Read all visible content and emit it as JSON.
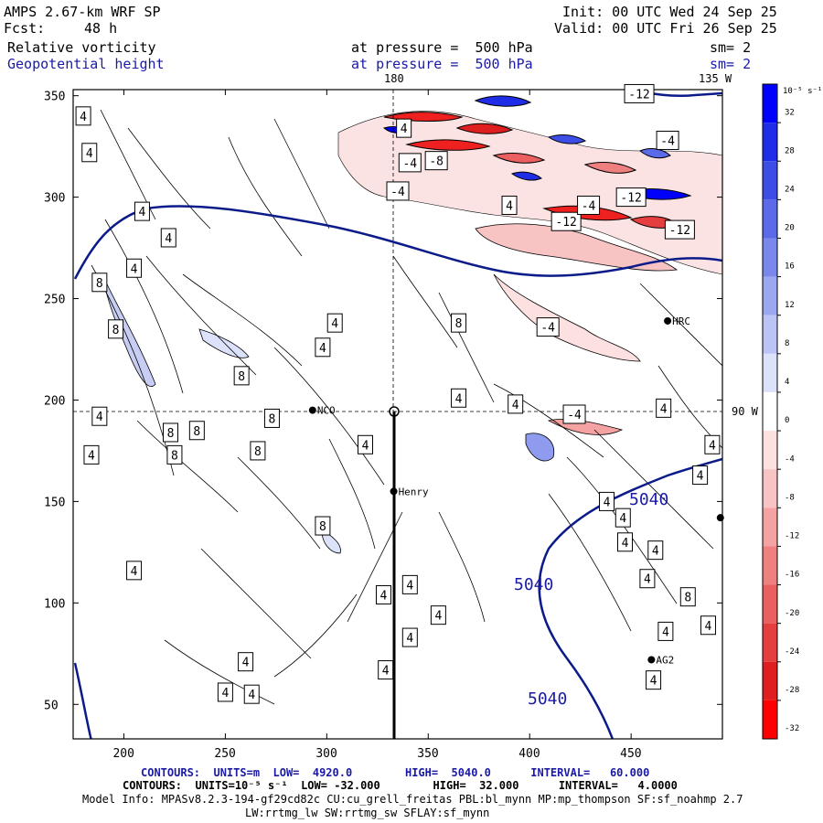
{
  "header": {
    "model": "AMPS 2.67-km WRF SP",
    "init": "Init: 00 UTC Wed 24 Sep 25",
    "fcst_label": "Fcst:",
    "fcst_value": "48 h",
    "valid": "Valid: 00 UTC Fri 26 Sep 25",
    "field1": "Relative vorticity",
    "field1_level": "at pressure =  500 hPa",
    "field1_sm": "sm= 2",
    "field2": "Geopotential height",
    "field2_level": "at pressure =  500 hPa",
    "field2_sm": "sm= 2"
  },
  "map": {
    "x_ticks": [
      "200",
      "250",
      "300",
      "350",
      "400",
      "450"
    ],
    "y_ticks": [
      "350",
      "300",
      "250",
      "200",
      "150",
      "100",
      "50"
    ],
    "lon_label_top_180": "180",
    "lon_label_top_135w": "135 W",
    "lon_label_right_90w": "90 W",
    "stations": [
      {
        "name": "HRC",
        "x": 468,
        "y": 239
      },
      {
        "name": "NCO",
        "x": 293,
        "y": 195
      },
      {
        "name": "Henry",
        "x": 333,
        "y": 155
      },
      {
        "name": "AG2",
        "x": 460,
        "y": 72
      },
      {
        "name": "",
        "x": 494,
        "y": 142
      }
    ],
    "height_labels": [
      "5040",
      "5040",
      "5040"
    ],
    "vort_labels": [
      {
        "t": "4",
        "x": 180,
        "y": 340
      },
      {
        "t": "4",
        "x": 183,
        "y": 322
      },
      {
        "t": "4",
        "x": 209,
        "y": 293
      },
      {
        "t": "4",
        "x": 222,
        "y": 280
      },
      {
        "t": "4",
        "x": 205,
        "y": 265
      },
      {
        "t": "8",
        "x": 188,
        "y": 258
      },
      {
        "t": "8",
        "x": 196,
        "y": 235
      },
      {
        "t": "4",
        "x": 304,
        "y": 238
      },
      {
        "t": "4",
        "x": 298,
        "y": 226
      },
      {
        "t": "8",
        "x": 258,
        "y": 212
      },
      {
        "t": "8",
        "x": 365,
        "y": 238
      },
      {
        "t": "-4",
        "x": 409,
        "y": 236
      },
      {
        "t": "4",
        "x": 188,
        "y": 192
      },
      {
        "t": "4",
        "x": 184,
        "y": 173
      },
      {
        "t": "8",
        "x": 223,
        "y": 184
      },
      {
        "t": "8",
        "x": 225,
        "y": 173
      },
      {
        "t": "8",
        "x": 236,
        "y": 185
      },
      {
        "t": "8",
        "x": 266,
        "y": 175
      },
      {
        "t": "8",
        "x": 273,
        "y": 191
      },
      {
        "t": "4",
        "x": 319,
        "y": 178
      },
      {
        "t": "4",
        "x": 365,
        "y": 201
      },
      {
        "t": "4",
        "x": 393,
        "y": 198
      },
      {
        "t": "-4",
        "x": 422,
        "y": 193
      },
      {
        "t": "4",
        "x": 466,
        "y": 196
      },
      {
        "t": "4",
        "x": 490,
        "y": 178
      },
      {
        "t": "4",
        "x": 484,
        "y": 163
      },
      {
        "t": "8",
        "x": 298,
        "y": 138
      },
      {
        "t": "4",
        "x": 438,
        "y": 150
      },
      {
        "t": "4",
        "x": 446,
        "y": 142
      },
      {
        "t": "4",
        "x": 447,
        "y": 130
      },
      {
        "t": "4",
        "x": 462,
        "y": 126
      },
      {
        "t": "4",
        "x": 458,
        "y": 112
      },
      {
        "t": "8",
        "x": 478,
        "y": 103
      },
      {
        "t": "4",
        "x": 488,
        "y": 89
      },
      {
        "t": "4",
        "x": 467,
        "y": 86
      },
      {
        "t": "4",
        "x": 461,
        "y": 62
      },
      {
        "t": "4",
        "x": 205,
        "y": 116
      },
      {
        "t": "4",
        "x": 328,
        "y": 104
      },
      {
        "t": "4",
        "x": 341,
        "y": 109
      },
      {
        "t": "4",
        "x": 355,
        "y": 94
      },
      {
        "t": "4",
        "x": 341,
        "y": 83
      },
      {
        "t": "4",
        "x": 260,
        "y": 71
      },
      {
        "t": "4",
        "x": 329,
        "y": 67
      },
      {
        "t": "4",
        "x": 263,
        "y": 55
      },
      {
        "t": "4",
        "x": 250,
        "y": 56
      },
      {
        "t": "-4",
        "x": 335,
        "y": 303
      },
      {
        "t": "4",
        "x": 338,
        "y": 334
      },
      {
        "t": "-4",
        "x": 341,
        "y": 317
      },
      {
        "t": "-8",
        "x": 354,
        "y": 318
      },
      {
        "t": "4",
        "x": 390,
        "y": 296
      },
      {
        "t": "-12",
        "x": 418,
        "y": 288
      },
      {
        "t": "-4",
        "x": 429,
        "y": 296
      },
      {
        "t": "-12",
        "x": 450,
        "y": 300
      },
      {
        "t": "-12",
        "x": 474,
        "y": 284
      },
      {
        "t": "-12",
        "x": 454,
        "y": 351
      },
      {
        "t": "-4",
        "x": 468,
        "y": 328
      }
    ],
    "colorbar": {
      "unit": "10⁻⁵ s⁻¹",
      "ticks": [
        "32",
        "28",
        "24",
        "20",
        "16",
        "12",
        "8",
        "4",
        "0",
        "-4",
        "-8",
        "-12",
        "-16",
        "-20",
        "-24",
        "-28",
        "-32"
      ],
      "colors": [
        "#0000ff",
        "#1f2ee6",
        "#3d4ee6",
        "#5a6ae8",
        "#7a88ec",
        "#9ba7f0",
        "#bcc4f5",
        "#dde2fb",
        "#ffffff",
        "#fde1e1",
        "#f8c3c3",
        "#f4a2a2",
        "#ef8080",
        "#ea5f5f",
        "#e43e3e",
        "#df1f1f",
        "#ff0000"
      ]
    }
  },
  "footer": {
    "line1": "CONTOURS:  UNITS=m  LOW=  4920.0        HIGH=  5040.0      INTERVAL=   60.000",
    "line2": "CONTOURS:  UNITS=10⁻⁵ s⁻¹  LOW= -32.000        HIGH=  32.000      INTERVAL=   4.0000",
    "line3": "Model Info: MPASv8.2.3-194-gf29cd82c CU:cu_grell_freitas PBL:bl_mynn MP:mp_thompson SF:sf_noahmp 2.7",
    "line4": "LW:rrtmg_lw SW:rrtmg_sw SFLAY:sf_mynn"
  }
}
